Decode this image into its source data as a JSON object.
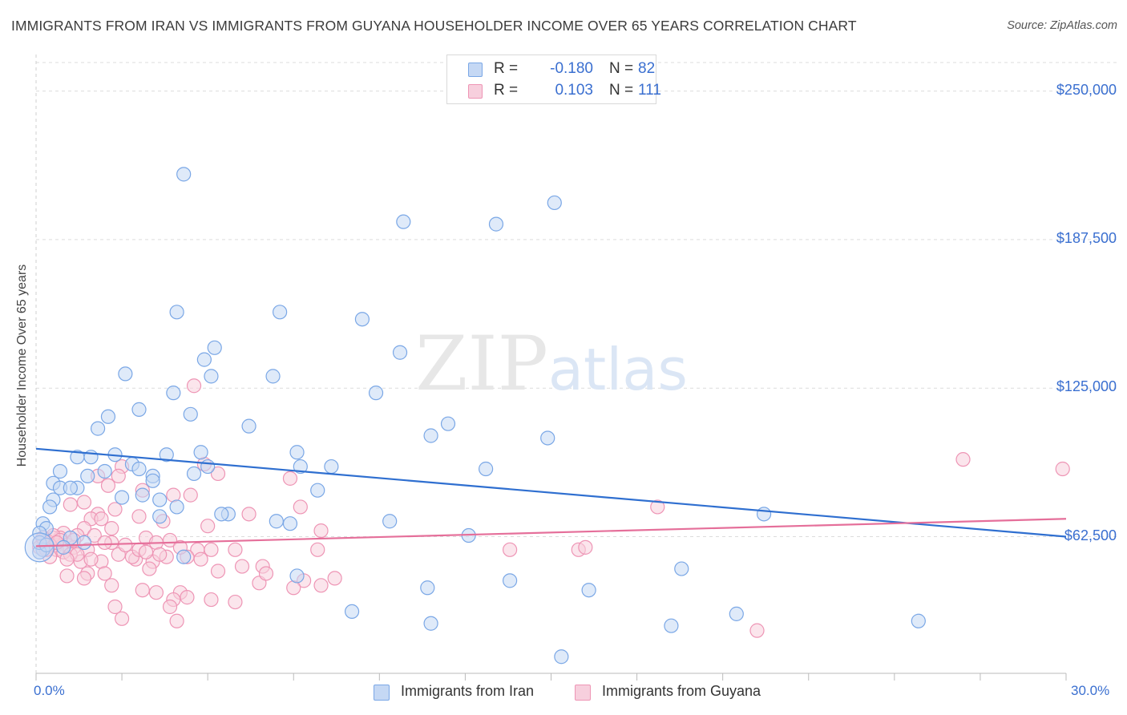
{
  "chart_data": {
    "type": "scatter",
    "title": "IMMIGRANTS FROM IRAN VS IMMIGRANTS FROM GUYANA HOUSEHOLDER INCOME OVER 65 YEARS CORRELATION CHART",
    "source": "Source: ZipAtlas.com",
    "watermark": "ZIPatlas",
    "ylabel": "Householder Income Over 65 years",
    "xlim": [
      0,
      30
    ],
    "ylim": [
      5000,
      262000
    ],
    "x_tick_labels": [
      "0.0%",
      "30.0%"
    ],
    "y_ticks": [
      62500,
      125000,
      187500,
      250000
    ],
    "y_tick_labels": [
      "$62,500",
      "$125,000",
      "$187,500",
      "$250,000"
    ],
    "legend": {
      "rows": [
        {
          "r_label": "R =",
          "r_value": "-0.180",
          "n_label": "N =",
          "n_value": "82"
        },
        {
          "r_label": "R =",
          "r_value": "0.103",
          "n_label": "N =",
          "n_value": "111"
        }
      ]
    },
    "series": [
      {
        "name": "Immigrants from Iran",
        "color": "#7aa7e6",
        "fill": "#c5d8f4",
        "trend_color": "#2f6fd0",
        "trend": [
          [
            0,
            99500
          ],
          [
            30,
            62500
          ]
        ],
        "points": [
          [
            4.3,
            215000
          ],
          [
            10.7,
            195000
          ],
          [
            13.4,
            194000
          ],
          [
            15.1,
            203000
          ],
          [
            4.1,
            157000
          ],
          [
            7.1,
            157000
          ],
          [
            9.5,
            154000
          ],
          [
            10.6,
            140000
          ],
          [
            5.2,
            142000
          ],
          [
            4.9,
            137000
          ],
          [
            2.6,
            131000
          ],
          [
            5.1,
            130000
          ],
          [
            6.9,
            130000
          ],
          [
            4.0,
            123000
          ],
          [
            9.9,
            123000
          ],
          [
            3.0,
            116000
          ],
          [
            4.5,
            114000
          ],
          [
            2.1,
            113000
          ],
          [
            1.8,
            108000
          ],
          [
            6.2,
            109000
          ],
          [
            12.0,
            110000
          ],
          [
            11.5,
            105000
          ],
          [
            14.9,
            104000
          ],
          [
            7.6,
            98000
          ],
          [
            4.8,
            98000
          ],
          [
            3.8,
            97000
          ],
          [
            2.3,
            97000
          ],
          [
            1.2,
            96000
          ],
          [
            1.6,
            96000
          ],
          [
            2.8,
            93000
          ],
          [
            5.0,
            92000
          ],
          [
            8.6,
            92000
          ],
          [
            7.7,
            92000
          ],
          [
            2.0,
            90000
          ],
          [
            3.0,
            91000
          ],
          [
            0.7,
            90000
          ],
          [
            0.5,
            85000
          ],
          [
            1.5,
            88000
          ],
          [
            3.4,
            88000
          ],
          [
            4.6,
            89000
          ],
          [
            3.4,
            86000
          ],
          [
            0.7,
            83000
          ],
          [
            1.2,
            83000
          ],
          [
            1.0,
            83000
          ],
          [
            8.2,
            82000
          ],
          [
            13.1,
            91000
          ],
          [
            2.5,
            79000
          ],
          [
            3.1,
            80000
          ],
          [
            3.6,
            78000
          ],
          [
            0.5,
            78000
          ],
          [
            0.4,
            75000
          ],
          [
            4.1,
            75000
          ],
          [
            5.6,
            72000
          ],
          [
            5.4,
            72000
          ],
          [
            3.6,
            71000
          ],
          [
            7.0,
            69000
          ],
          [
            7.4,
            68000
          ],
          [
            10.3,
            69000
          ],
          [
            21.2,
            72000
          ],
          [
            0.2,
            68000
          ],
          [
            0.3,
            66000
          ],
          [
            0.1,
            64000
          ],
          [
            12.6,
            63000
          ],
          [
            1.4,
            60000
          ],
          [
            0.2,
            57000
          ],
          [
            0.1,
            56000
          ],
          [
            4.3,
            54000
          ],
          [
            18.8,
            49000
          ],
          [
            7.6,
            46000
          ],
          [
            13.8,
            44000
          ],
          [
            11.4,
            41000
          ],
          [
            16.1,
            40000
          ],
          [
            9.2,
            31000
          ],
          [
            20.4,
            30000
          ],
          [
            11.5,
            26000
          ],
          [
            18.5,
            25000
          ],
          [
            25.7,
            27000
          ],
          [
            15.3,
            12000
          ],
          [
            0.1,
            60000
          ],
          [
            0.3,
            59000
          ],
          [
            1.0,
            62000
          ],
          [
            0.8,
            58000
          ]
        ]
      },
      {
        "name": "Immigrants from Guyana",
        "color": "#ee95b5",
        "fill": "#f7cfdd",
        "trend_color": "#e56f9a",
        "trend": [
          [
            0,
            58500
          ],
          [
            30,
            70000
          ]
        ],
        "points": [
          [
            4.6,
            126000
          ],
          [
            27.0,
            95000
          ],
          [
            29.9,
            91000
          ],
          [
            4.9,
            93000
          ],
          [
            2.5,
            92000
          ],
          [
            5.3,
            89000
          ],
          [
            1.8,
            88000
          ],
          [
            7.4,
            87000
          ],
          [
            2.4,
            88000
          ],
          [
            2.1,
            84000
          ],
          [
            3.1,
            82000
          ],
          [
            4.5,
            80000
          ],
          [
            4.0,
            80000
          ],
          [
            1.4,
            77000
          ],
          [
            1.0,
            76000
          ],
          [
            7.7,
            75000
          ],
          [
            18.1,
            75000
          ],
          [
            2.3,
            74000
          ],
          [
            1.8,
            72000
          ],
          [
            6.2,
            72000
          ],
          [
            3.0,
            71000
          ],
          [
            1.6,
            70000
          ],
          [
            1.9,
            70000
          ],
          [
            3.7,
            69000
          ],
          [
            5.0,
            67000
          ],
          [
            2.2,
            66000
          ],
          [
            8.3,
            65000
          ],
          [
            1.4,
            66000
          ],
          [
            0.8,
            64000
          ],
          [
            1.2,
            63000
          ],
          [
            0.7,
            62000
          ],
          [
            0.5,
            62000
          ],
          [
            0.3,
            61000
          ],
          [
            0.2,
            61000
          ],
          [
            0.1,
            60000
          ],
          [
            0.4,
            60000
          ],
          [
            0.6,
            59000
          ],
          [
            0.9,
            59000
          ],
          [
            1.1,
            58000
          ],
          [
            1.5,
            57000
          ],
          [
            2.2,
            60000
          ],
          [
            3.2,
            62000
          ],
          [
            3.5,
            60000
          ],
          [
            3.9,
            61000
          ],
          [
            4.7,
            57000
          ],
          [
            5.1,
            57000
          ],
          [
            5.8,
            57000
          ],
          [
            8.2,
            57000
          ],
          [
            13.8,
            57000
          ],
          [
            15.8,
            57000
          ],
          [
            16.0,
            58000
          ],
          [
            1.3,
            52000
          ],
          [
            1.9,
            52000
          ],
          [
            2.9,
            53000
          ],
          [
            3.4,
            52000
          ],
          [
            3.8,
            54000
          ],
          [
            4.4,
            54000
          ],
          [
            5.3,
            48000
          ],
          [
            6.0,
            50000
          ],
          [
            6.6,
            50000
          ],
          [
            1.5,
            47000
          ],
          [
            2.0,
            47000
          ],
          [
            3.3,
            49000
          ],
          [
            0.9,
            46000
          ],
          [
            1.4,
            45000
          ],
          [
            8.7,
            45000
          ],
          [
            7.8,
            44000
          ],
          [
            6.5,
            43000
          ],
          [
            7.5,
            41000
          ],
          [
            8.3,
            42000
          ],
          [
            2.2,
            42000
          ],
          [
            3.1,
            40000
          ],
          [
            3.5,
            39000
          ],
          [
            4.2,
            39000
          ],
          [
            4.4,
            37000
          ],
          [
            5.1,
            36000
          ],
          [
            4.0,
            36000
          ],
          [
            5.8,
            35000
          ],
          [
            2.3,
            33000
          ],
          [
            3.9,
            33000
          ],
          [
            2.5,
            28000
          ],
          [
            4.1,
            27000
          ],
          [
            21.0,
            23000
          ],
          [
            0.1,
            58000
          ],
          [
            0.3,
            58000
          ],
          [
            0.2,
            57000
          ],
          [
            0.6,
            57000
          ],
          [
            0.8,
            56000
          ],
          [
            1.0,
            55000
          ],
          [
            1.2,
            55000
          ],
          [
            0.4,
            54000
          ],
          [
            0.9,
            53000
          ],
          [
            1.6,
            53000
          ],
          [
            2.4,
            55000
          ],
          [
            2.8,
            54000
          ],
          [
            3.6,
            55000
          ],
          [
            4.8,
            53000
          ],
          [
            0.5,
            63000
          ],
          [
            0.7,
            61000
          ],
          [
            1.7,
            63000
          ],
          [
            2.6,
            59000
          ],
          [
            3.0,
            57000
          ],
          [
            3.2,
            56000
          ],
          [
            4.2,
            58000
          ],
          [
            6.7,
            47000
          ],
          [
            2.0,
            60000
          ],
          [
            1.1,
            61000
          ],
          [
            0.4,
            59000
          ],
          [
            0.2,
            62000
          ],
          [
            0.6,
            60000
          ],
          [
            0.3,
            57000
          ]
        ]
      }
    ]
  }
}
